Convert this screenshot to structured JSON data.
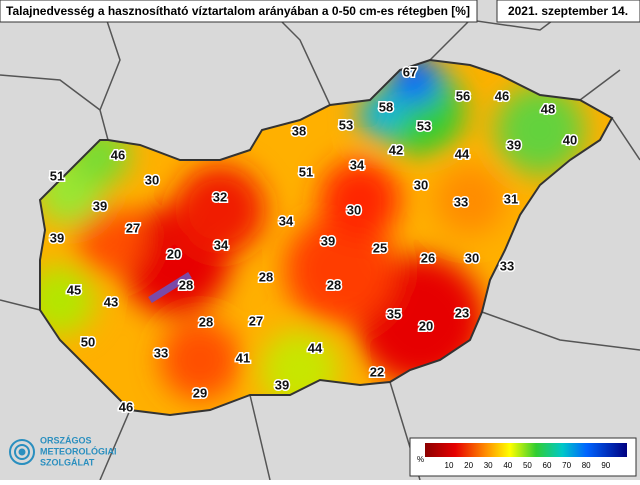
{
  "header": {
    "title": "Talajnedvesség a hasznosítható víztartalom arányában a 0-50 cm-es rétegben [%]",
    "date": "2021. szeptember 14."
  },
  "map": {
    "values": [
      67,
      56,
      46,
      48,
      58,
      53,
      53,
      40,
      38,
      39,
      44,
      42,
      46,
      34,
      51,
      30,
      51,
      32,
      30,
      33,
      31,
      39,
      30,
      27,
      34,
      39,
      20,
      34,
      39,
      25,
      26,
      30,
      33,
      28,
      28,
      28,
      45,
      43,
      35,
      23,
      20,
      28,
      27,
      50,
      33,
      44,
      41,
      22,
      39,
      29,
      46
    ]
  },
  "legend": {
    "unit": "%",
    "ticks": [
      10,
      20,
      30,
      40,
      50,
      60,
      70,
      80,
      90
    ]
  },
  "logo": {
    "lines": [
      "ORSZÁGOS",
      "METEOROLÓGIAI",
      "SZOLGÁLAT"
    ]
  }
}
